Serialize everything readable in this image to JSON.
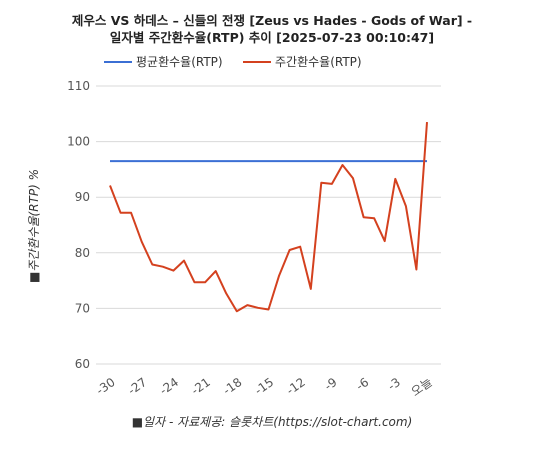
{
  "chart_data": {
    "type": "line",
    "title_line1": "제우스 VS 하데스 – 신들의 전쟁 [Zeus vs Hades - Gods of War] -",
    "title_line2": "일자별 주간환수율(RTP) 추이 [2025-07-23 00:10:47]",
    "xlabel": "■일자 - 자료제공: 슬롯차트(https://slot-chart.com)",
    "ylabel": "■주간환수율(RTP) %",
    "ylim": [
      60,
      110
    ],
    "yticks": [
      "60",
      "70",
      "80",
      "90",
      "100",
      "110"
    ],
    "x": [
      -30,
      -29,
      -28,
      -27,
      -26,
      -25,
      -24,
      -23,
      -22,
      -21,
      -20,
      -19,
      -18,
      -17,
      -16,
      -15,
      -14,
      -13,
      -12,
      -11,
      -10,
      -9,
      -8,
      -7,
      -6,
      -5,
      -4,
      -3,
      -2,
      -1,
      0
    ],
    "xtick_labels": [
      "-30",
      "-27",
      "-24",
      "-21",
      "-18",
      "-15",
      "-12",
      "-9",
      "-6",
      "-3",
      "오늘"
    ],
    "series": [
      {
        "name": "평균환수율(RTP)",
        "color": "#3b6fd4",
        "values": [
          96.5,
          96.5,
          96.5,
          96.5,
          96.5,
          96.5,
          96.5,
          96.5,
          96.5,
          96.5,
          96.5,
          96.5,
          96.5,
          96.5,
          96.5,
          96.5,
          96.5,
          96.5,
          96.5,
          96.5,
          96.5,
          96.5,
          96.5,
          96.5,
          96.5,
          96.5,
          96.5,
          96.5,
          96.5,
          96.5,
          96.5
        ]
      },
      {
        "name": "주간환수율(RTP)",
        "color": "#d4411f",
        "values": [
          92.1,
          87.2,
          87.2,
          82.0,
          77.9,
          77.5,
          76.8,
          78.6,
          74.7,
          74.7,
          76.7,
          72.7,
          69.5,
          70.6,
          70.1,
          69.8,
          75.9,
          80.5,
          81.1,
          73.5,
          92.6,
          92.4,
          95.8,
          93.4,
          86.4,
          86.2,
          82.1,
          93.3,
          88.4,
          77.0,
          103.5
        ]
      }
    ],
    "grid": true,
    "legend_position": "top-left"
  }
}
